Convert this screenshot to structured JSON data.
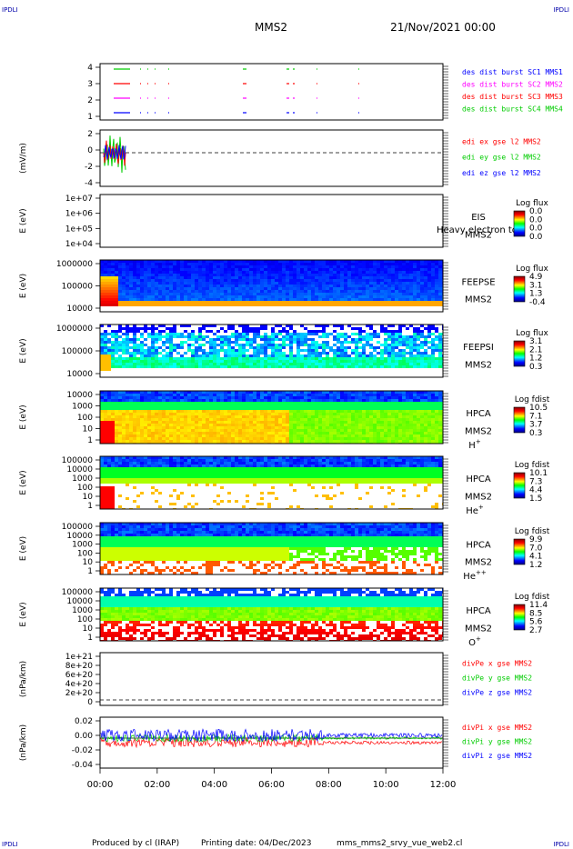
{
  "header": {
    "corner_tl": "IPDLI",
    "corner_tr": "IPDLI",
    "corner_bl": "IPDLI",
    "corner_br": "IPDLI",
    "spacecraft": "MMS2",
    "date": "21/Nov/2021 00:00"
  },
  "footer": {
    "produced": "Produced by cl (IRAP)",
    "printing": "Printing date: 04/Dec/2023",
    "file": "mms_mms2_srvy_vue_web2.cl"
  },
  "colors": {
    "blue": "#0000ff",
    "red": "#ff0000",
    "magenta": "#ff00ff",
    "green": "#00cc00"
  },
  "chart_data": {
    "type": "multi-panel",
    "x_ticks": [
      "00:00",
      "02:00",
      "04:00",
      "06:00",
      "08:00",
      "10:00",
      "12:00"
    ],
    "panels": [
      {
        "kind": "line",
        "ylabel": "",
        "yticks": [
          "4",
          "3",
          "2",
          "1"
        ],
        "legend": [
          {
            "text": "des dist burst SC1 MMS1",
            "color": "#0000ff"
          },
          {
            "text": "des dist burst SC2 MMS2",
            "color": "#ff00ff"
          },
          {
            "text": "des dist burst SC3 MMS3",
            "color": "#ff0000"
          },
          {
            "text": "des dist burst SC4 MMS4",
            "color": "#00cc00"
          }
        ]
      },
      {
        "kind": "line",
        "ylabel": "(mV/m)",
        "yticks": [
          "2",
          "0",
          "-2",
          "-4"
        ],
        "legend": [
          {
            "text": "edi ex gse l2 MMS2",
            "color": "#ff0000"
          },
          {
            "text": "edi ey gse l2 MMS2",
            "color": "#00cc00"
          },
          {
            "text": "edi ez gse l2 MMS2",
            "color": "#0000ff"
          }
        ]
      },
      {
        "kind": "spectrogram",
        "ylabel": "E (eV)",
        "yticks": [
          "1e+07",
          "1e+06",
          "1e+05",
          "1e+04"
        ],
        "labels": [
          "EIS",
          "MMS2"
        ],
        "overlay_text": "Heavy electron to",
        "cbar_title": "Log flux",
        "cbar_ticks": [
          "0.0",
          "0.0",
          "0.0",
          "0.0"
        ],
        "empty": true
      },
      {
        "kind": "spectrogram",
        "ylabel": "E (eV)",
        "yticks": [
          "1000000",
          "100000",
          "10000"
        ],
        "labels": [
          "FEEPSE",
          "MMS2"
        ],
        "cbar_title": "Log flux",
        "cbar_ticks": [
          "4.9",
          "3.1",
          "1.3",
          "-0.4"
        ],
        "variant": "feepse"
      },
      {
        "kind": "spectrogram",
        "ylabel": "E (eV)",
        "yticks": [
          "1000000",
          "100000",
          "10000"
        ],
        "labels": [
          "FEEPSI",
          "MMS2"
        ],
        "cbar_title": "Log flux",
        "cbar_ticks": [
          "3.1",
          "2.1",
          "1.2",
          "0.3"
        ],
        "variant": "feepsi"
      },
      {
        "kind": "spectrogram",
        "ylabel": "E (eV)",
        "yticks": [
          "10000",
          "1000",
          "100",
          "10",
          "1"
        ],
        "labels": [
          "HPCA",
          "MMS2",
          "H"
        ],
        "species_sup": "+",
        "cbar_title": "Log fdist",
        "cbar_ticks": [
          "10.5",
          "7.1",
          "3.7",
          "0.3"
        ],
        "variant": "h"
      },
      {
        "kind": "spectrogram",
        "ylabel": "E (eV)",
        "yticks": [
          "100000",
          "10000",
          "1000",
          "100",
          "10",
          "1"
        ],
        "labels": [
          "HPCA",
          "MMS2",
          "He"
        ],
        "species_sup": "+",
        "cbar_title": "Log fdist",
        "cbar_ticks": [
          "10.1",
          "7.3",
          "4.4",
          "1.5"
        ],
        "variant": "he"
      },
      {
        "kind": "spectrogram",
        "ylabel": "E (eV)",
        "yticks": [
          "100000",
          "10000",
          "1000",
          "100",
          "10",
          "1"
        ],
        "labels": [
          "HPCA",
          "MMS2",
          "He"
        ],
        "species_sup": "++",
        "cbar_title": "Log fdist",
        "cbar_ticks": [
          "9.9",
          "7.0",
          "4.1",
          "1.2"
        ],
        "variant": "hepp"
      },
      {
        "kind": "spectrogram",
        "ylabel": "E (eV)",
        "yticks": [
          "100000",
          "10000",
          "1000",
          "100",
          "10",
          "1"
        ],
        "labels": [
          "HPCA",
          "MMS2",
          "O"
        ],
        "species_sup": "+",
        "cbar_title": "Log fdist",
        "cbar_ticks": [
          "11.4",
          "8.5",
          "5.6",
          "2.7"
        ],
        "variant": "o"
      },
      {
        "kind": "line",
        "ylabel": "(nPa/km)",
        "yticks": [
          "1e+21",
          "8e+20",
          "6e+20",
          "4e+20",
          "2e+20",
          "0"
        ],
        "legend": [
          {
            "text": "divPe x gse MMS2",
            "color": "#ff0000"
          },
          {
            "text": "divPe y gse MMS2",
            "color": "#00cc00"
          },
          {
            "text": "divPe z gse MMS2",
            "color": "#0000ff"
          }
        ]
      },
      {
        "kind": "line",
        "ylabel": "(nPa/km)",
        "yticks": [
          "0.02",
          "0.00",
          "-0.02",
          "-0.04"
        ],
        "legend": [
          {
            "text": "divPi x gse MMS2",
            "color": "#ff0000"
          },
          {
            "text": "divPi y gse MMS2",
            "color": "#00cc00"
          },
          {
            "text": "divPi z gse MMS2",
            "color": "#0000ff"
          }
        ]
      }
    ]
  }
}
